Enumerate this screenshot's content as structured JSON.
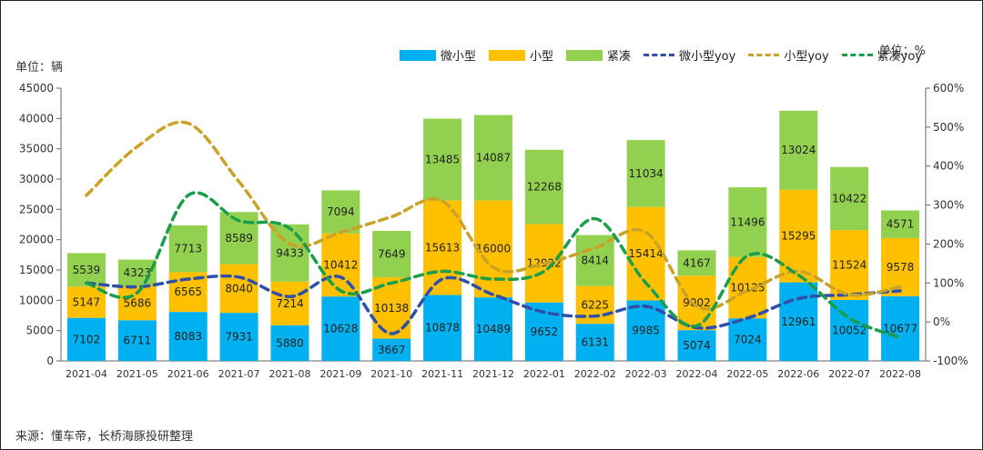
{
  "unit_left": "单位：辆",
  "unit_right": "单位：%",
  "source": "来源：懂车帝，长桥海豚投研整理",
  "legend": [
    {
      "label": "微小型",
      "kind": "bar",
      "color": "#00b0f0"
    },
    {
      "label": "小型",
      "kind": "bar",
      "color": "#ffc000"
    },
    {
      "label": "紧凑",
      "kind": "bar",
      "color": "#92d050"
    },
    {
      "label": "微小型yoy",
      "kind": "line",
      "color": "#2f4fa8"
    },
    {
      "label": "小型yoy",
      "kind": "line",
      "color": "#c9a227"
    },
    {
      "label": "紧凑yoy",
      "kind": "line",
      "color": "#1a9e4a"
    }
  ],
  "chart_data": {
    "type": "bar",
    "stacked": true,
    "categories": [
      "2021-04",
      "2021-05",
      "2021-06",
      "2021-07",
      "2021-08",
      "2021-09",
      "2021-10",
      "2021-11",
      "2021-12",
      "2022-01",
      "2022-02",
      "2022-03",
      "2022-04",
      "2022-05",
      "2022-06",
      "2022-07",
      "2022-08"
    ],
    "series": [
      {
        "name": "微小型",
        "color": "#00b0f0",
        "values": [
          7102,
          6711,
          8083,
          7931,
          5880,
          10628,
          3667,
          10878,
          10489,
          9652,
          6131,
          9985,
          5074,
          7024,
          12961,
          10052,
          10677
        ]
      },
      {
        "name": "小型",
        "color": "#ffc000",
        "values": [
          5147,
          5686,
          6565,
          8040,
          7214,
          10412,
          10138,
          15613,
          16000,
          12922,
          6225,
          15414,
          9002,
          10125,
          15295,
          11524,
          9578
        ]
      },
      {
        "name": "紧凑",
        "color": "#92d050",
        "values": [
          5539,
          4323,
          7713,
          8589,
          9433,
          7094,
          7649,
          13485,
          14087,
          12268,
          8414,
          11034,
          4167,
          11496,
          13024,
          10422,
          4571
        ]
      }
    ],
    "lines": [
      {
        "name": "微小型yoy",
        "color": "#2f4fa8",
        "values": [
          100,
          90,
          110,
          115,
          65,
          115,
          -30,
          110,
          70,
          25,
          15,
          40,
          -15,
          10,
          60,
          70,
          80
        ]
      },
      {
        "name": "小型yoy",
        "color": "#c9a227",
        "values": [
          325,
          450,
          510,
          360,
          200,
          230,
          270,
          310,
          140,
          150,
          190,
          230,
          40,
          80,
          130,
          70,
          90
        ]
      },
      {
        "name": "紧凑yoy",
        "color": "#1a9e4a",
        "values": [
          100,
          75,
          325,
          260,
          240,
          80,
          100,
          130,
          110,
          130,
          265,
          100,
          -10,
          170,
          120,
          10,
          -40
        ]
      }
    ],
    "y_left": {
      "min": 0,
      "max": 45000,
      "step": 5000
    },
    "y_right": {
      "min": -100,
      "max": 600,
      "step": 100,
      "suffix": "%"
    }
  }
}
